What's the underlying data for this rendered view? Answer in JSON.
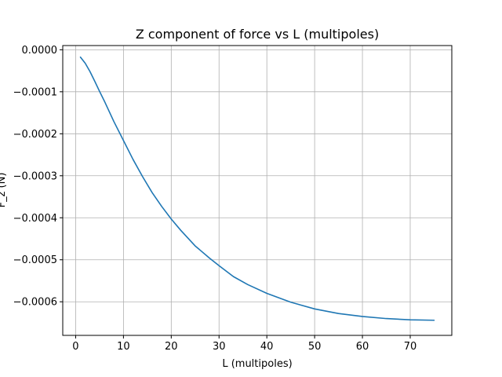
{
  "chart_data": {
    "type": "line",
    "title": "Z component of force vs L (multipoles)",
    "xlabel": "L (multipoles)",
    "ylabel": "F_z (N)",
    "xlim": [
      -2.7,
      78.7
    ],
    "ylim": [
      -0.00068,
      1e-05
    ],
    "grid": true,
    "x_ticks": [
      0,
      10,
      20,
      30,
      40,
      50,
      60,
      70
    ],
    "x_tick_labels": [
      "0",
      "10",
      "20",
      "30",
      "40",
      "50",
      "60",
      "70"
    ],
    "y_ticks": [
      0.0,
      -0.0001,
      -0.0002,
      -0.0003,
      -0.0004,
      -0.0005,
      -0.0006
    ],
    "y_tick_labels": [
      "0.0000",
      "−0.0001",
      "−0.0002",
      "−0.0003",
      "−0.0004",
      "−0.0005",
      "−0.0006"
    ],
    "series": [
      {
        "color": "#1f77b4",
        "x": [
          1,
          2,
          3,
          4,
          5,
          6,
          8,
          10,
          12,
          14,
          16,
          18,
          20,
          22,
          25,
          28,
          30,
          33,
          36,
          40,
          45,
          50,
          55,
          60,
          65,
          70,
          75
        ],
        "y": [
          -1.75e-05,
          -3.2e-05,
          -5.2e-05,
          -7.5e-05,
          -9.9e-05,
          -0.000122,
          -0.000171,
          -0.000216,
          -0.000261,
          -0.000302,
          -0.00034,
          -0.000373,
          -0.000403,
          -0.00043,
          -0.000467,
          -0.000496,
          -0.000514,
          -0.00054,
          -0.000559,
          -0.00058,
          -0.000601,
          -0.000617,
          -0.000628,
          -0.000635,
          -0.00064,
          -0.000643,
          -0.000644
        ]
      }
    ]
  }
}
